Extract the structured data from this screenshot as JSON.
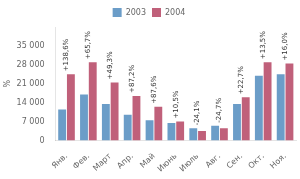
{
  "chart_data": {
    "type": "bar",
    "categories": [
      "Янв.",
      "Фев.",
      "Март",
      "Апр.",
      "Май",
      "Июнь",
      "Июль",
      "Авг.",
      "Сен.",
      "Окт.",
      "Ноя."
    ],
    "series": [
      {
        "name": "2003",
        "color": "#6B9DC8",
        "values": [
          11500,
          17000,
          13500,
          9500,
          7500,
          6500,
          4500,
          5500,
          13500,
          24000,
          24500
        ]
      },
      {
        "name": "2004",
        "color": "#C0607A",
        "values": [
          24500,
          29000,
          21500,
          16500,
          12500,
          7000,
          3500,
          4500,
          16000,
          29000,
          28500
        ]
      }
    ],
    "annotations": [
      {
        "x": "Янв.",
        "text": "+138,6%"
      },
      {
        "x": "Фев.",
        "text": "+65,7%"
      },
      {
        "x": "Март",
        "text": "+49,3%"
      },
      {
        "x": "Апр.",
        "text": "+87,2%"
      },
      {
        "x": "Май",
        "text": "+87,6%"
      },
      {
        "x": "Июнь",
        "text": "+10,5%"
      },
      {
        "x": "Июль",
        "text": "-24,1%"
      },
      {
        "x": "Авг.",
        "text": "-24,7%"
      },
      {
        "x": "Сен.",
        "text": "+22,7%"
      },
      {
        "x": "Окт.",
        "text": "+13,5%"
      },
      {
        "x": "Ноя.",
        "text": "+16,0%"
      }
    ],
    "y_label": "%",
    "ylim": [
      0,
      42000
    ],
    "yticks": [
      0,
      {
        "value": 7000,
        "label": "7 000"
      },
      {
        "value": 14000,
        "label": "14 000"
      },
      {
        "value": 21000,
        "label": "21 000"
      },
      {
        "value": 28000,
        "label": "28 000"
      },
      {
        "value": 35000,
        "label": "35 000"
      }
    ],
    "grid": false,
    "legend": "top"
  }
}
